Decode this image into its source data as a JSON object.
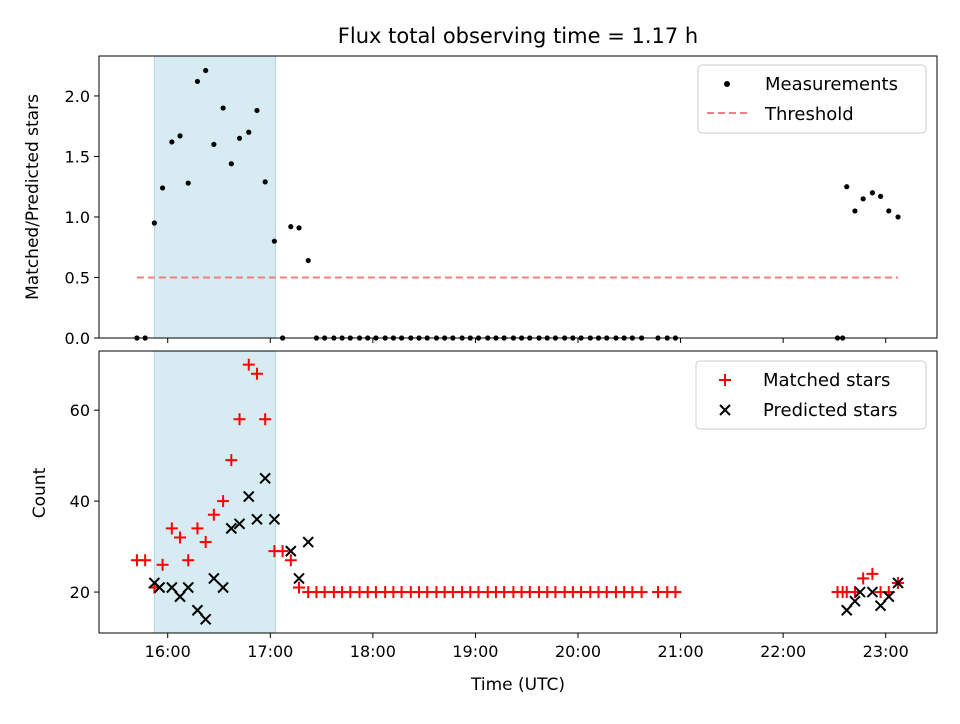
{
  "chart_data": [
    {
      "type": "scatter",
      "title": "Flux total observing time = 1.17 h",
      "xlabel": "",
      "ylabel": "Matched/Predicted stars",
      "xlim": [
        15.33,
        23.5
      ],
      "ylim": [
        0,
        2.33
      ],
      "yticks": [
        0,
        0.5,
        1.0,
        1.5,
        2.0
      ],
      "ytick_labels": [
        "0.0",
        "0.5",
        "1.0",
        "1.5",
        "2.0"
      ],
      "xticks": [
        16,
        17,
        18,
        19,
        20,
        21,
        22,
        23
      ],
      "grid": false,
      "legend": "top-right",
      "shaded_interval": [
        15.87,
        17.05
      ],
      "shade_color": "#add8e6",
      "series": [
        {
          "name": "Measurements",
          "marker": "dot",
          "color": "#000000",
          "x": [
            15.7,
            15.78,
            15.87,
            15.95,
            16.04,
            16.12,
            16.2,
            16.29,
            16.37,
            16.45,
            16.54,
            16.62,
            16.7,
            16.79,
            16.87,
            16.95,
            17.04,
            17.12,
            17.2,
            17.28,
            17.37,
            17.45,
            17.53,
            17.62,
            17.7,
            17.78,
            17.87,
            17.95,
            18.03,
            18.12,
            18.2,
            18.28,
            18.37,
            18.45,
            18.53,
            18.62,
            18.7,
            18.78,
            18.87,
            18.95,
            19.03,
            19.12,
            19.2,
            19.28,
            19.37,
            19.45,
            19.53,
            19.62,
            19.7,
            19.78,
            19.87,
            19.95,
            20.03,
            20.12,
            20.2,
            20.28,
            20.37,
            20.45,
            20.53,
            20.62,
            20.78,
            20.87,
            20.95,
            22.53,
            22.58,
            22.62,
            22.7,
            22.78,
            22.87,
            22.95,
            23.03,
            23.12
          ],
          "y": [
            0,
            0,
            0.95,
            1.24,
            1.62,
            1.67,
            1.28,
            2.12,
            2.21,
            1.6,
            1.9,
            1.44,
            1.65,
            1.7,
            1.88,
            1.29,
            0.8,
            0,
            0.92,
            0.91,
            0.64,
            0,
            0,
            0,
            0,
            0,
            0,
            0,
            0,
            0,
            0,
            0,
            0,
            0,
            0,
            0,
            0,
            0,
            0,
            0,
            0,
            0,
            0,
            0,
            0,
            0,
            0,
            0,
            0,
            0,
            0,
            0,
            0,
            0,
            0,
            0,
            0,
            0,
            0,
            0,
            0,
            0,
            0,
            0,
            0,
            1.25,
            1.05,
            1.15,
            1.2,
            1.17,
            1.05,
            1.0
          ]
        },
        {
          "name": "Threshold",
          "marker": "dashed-line",
          "color": "#f08080",
          "x": [
            15.7,
            23.12
          ],
          "y": [
            0.5,
            0.5
          ]
        }
      ]
    },
    {
      "type": "scatter",
      "title": "",
      "xlabel": "Time (UTC)",
      "ylabel": "Count",
      "xlim": [
        15.33,
        23.5
      ],
      "ylim": [
        11,
        73
      ],
      "yticks": [
        20,
        40,
        60
      ],
      "ytick_labels": [
        "20",
        "40",
        "60"
      ],
      "xticks": [
        16,
        17,
        18,
        19,
        20,
        21,
        22,
        23
      ],
      "xtick_labels": [
        "16:00",
        "17:00",
        "18:00",
        "19:00",
        "20:00",
        "21:00",
        "22:00",
        "23:00"
      ],
      "grid": false,
      "legend": "top-right",
      "shaded_interval": [
        15.87,
        17.05
      ],
      "shade_color": "#add8e6",
      "series": [
        {
          "name": "Matched stars",
          "marker": "plus",
          "color": "#ff0000",
          "x": [
            15.7,
            15.78,
            15.87,
            15.95,
            16.04,
            16.12,
            16.2,
            16.29,
            16.37,
            16.45,
            16.54,
            16.62,
            16.7,
            16.79,
            16.87,
            16.95,
            17.04,
            17.12,
            17.2,
            17.28,
            17.37,
            17.45,
            17.53,
            17.62,
            17.7,
            17.78,
            17.87,
            17.95,
            18.03,
            18.12,
            18.2,
            18.28,
            18.37,
            18.45,
            18.53,
            18.62,
            18.7,
            18.78,
            18.87,
            18.95,
            19.03,
            19.12,
            19.2,
            19.28,
            19.37,
            19.45,
            19.53,
            19.62,
            19.7,
            19.78,
            19.87,
            19.95,
            20.03,
            20.12,
            20.2,
            20.28,
            20.37,
            20.45,
            20.53,
            20.62,
            20.78,
            20.87,
            20.95,
            22.53,
            22.58,
            22.62,
            22.7,
            22.78,
            22.87,
            22.95,
            23.03,
            23.12
          ],
          "y": [
            27,
            27,
            21,
            26,
            34,
            32,
            27,
            34,
            31,
            37,
            40,
            49,
            58,
            70,
            68,
            58,
            29,
            29,
            27,
            21,
            20,
            20,
            20,
            20,
            20,
            20,
            20,
            20,
            20,
            20,
            20,
            20,
            20,
            20,
            20,
            20,
            20,
            20,
            20,
            20,
            20,
            20,
            20,
            20,
            20,
            20,
            20,
            20,
            20,
            20,
            20,
            20,
            20,
            20,
            20,
            20,
            20,
            20,
            20,
            20,
            20,
            20,
            20,
            20,
            20,
            20,
            20,
            23,
            24,
            20,
            20,
            22
          ]
        },
        {
          "name": "Predicted stars",
          "marker": "x",
          "color": "#000000",
          "x": [
            15.87,
            15.92,
            16.04,
            16.12,
            16.2,
            16.29,
            16.37,
            16.45,
            16.54,
            16.62,
            16.7,
            16.79,
            16.87,
            16.95,
            17.04,
            17.2,
            17.28,
            17.37,
            22.62,
            22.7,
            22.75,
            22.87,
            22.95,
            23.03,
            23.12
          ],
          "y": [
            22,
            21,
            21,
            19,
            21,
            16,
            14,
            23,
            21,
            34,
            35,
            41,
            36,
            45,
            36,
            29,
            23,
            31,
            16,
            18,
            20,
            20,
            17,
            19,
            22
          ]
        }
      ]
    }
  ]
}
